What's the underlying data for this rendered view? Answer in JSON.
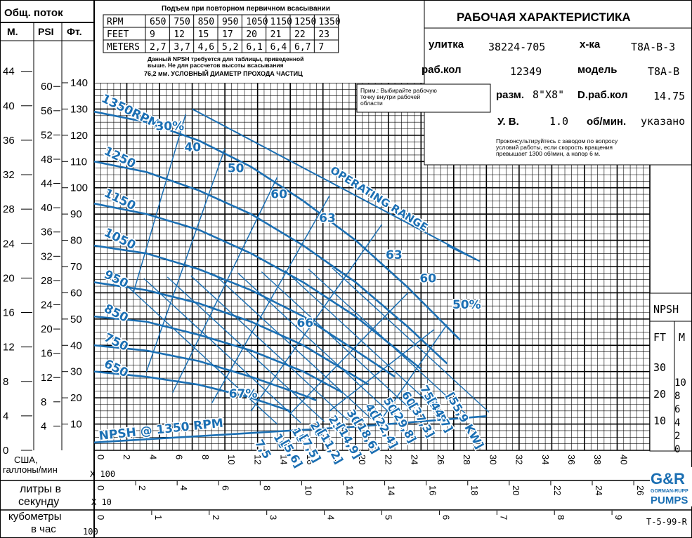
{
  "left_header": {
    "total_head": "Общ. поток",
    "m": "М.",
    "psi": "PSI",
    "ft": "Фт."
  },
  "npsh_table": {
    "title": "Подъем при повторном первичном всасывании",
    "rpm_label": "RPM",
    "feet_label": "FEET",
    "meters_label": "METERS",
    "rpm": [
      "650",
      "750",
      "850",
      "950",
      "1050",
      "1150",
      "1250",
      "1350"
    ],
    "feet": [
      "9",
      "12",
      "15",
      "17",
      "20",
      "21",
      "22",
      "23"
    ],
    "meters": [
      "2,7",
      "3,7",
      "4,6",
      "5,2",
      "6,1",
      "6,4",
      "6,7",
      "7"
    ],
    "note1": "Данный NPSH требуется для таблицы, приведенной",
    "note2": "выше. Не для рассчетов высоты всасывания",
    "note3": "76,2 мм. УСЛОВНЫЙ  ДИАМЕТР ПРОХОДА ЧАСТИЦ"
  },
  "spec": {
    "title": "РАБОЧАЯ ХАРАКТЕРИСТИКА",
    "volute_label": "улитка",
    "volute": "38224-705",
    "char_label": "х-ка",
    "char": "T8A-B-3",
    "impeller_label": "раб.кол",
    "impeller": "12349",
    "model_label": "модель",
    "model": "T8A-B",
    "size_label": "разм.",
    "size": "8\"X8\"",
    "dia_label": "D.раб.кол",
    "dia": "14.75",
    "sg_label": "У. В.",
    "sg": "1.0",
    "rpm_label": "об/мин.",
    "rpm": "указано",
    "consult": "Проконсультируйтесь с заводом по вопросу",
    "consult2": "условий работы, если скорость вращения",
    "consult3": "превышает 1300 об/мин, а напор 6 м.",
    "note": "Прим.: Выбирайте рабочую",
    "note2": "точку внутри рабочей",
    "note3": "области"
  },
  "axes": {
    "x_usgpm_label": "США,",
    "x_usgpm_label2": "галлоны/мин",
    "x_usgpm_mult": "X 100",
    "x_lps_label": "литры в",
    "x_lps_label2": "секунду",
    "x_lps_mult": "X 10",
    "x_m3h_label": "кубометры",
    "x_m3h_label2": "в час",
    "x_m3h_mult": "100",
    "x_usgpm_ticks": [
      "0",
      "2",
      "4",
      "6",
      "8",
      "10",
      "12",
      "14",
      "16",
      "18",
      "20",
      "22",
      "24",
      "26",
      "28",
      "30",
      "32",
      "34",
      "36",
      "38",
      "40"
    ],
    "x_lps_ticks": [
      "0",
      "2",
      "4",
      "6",
      "8",
      "10",
      "12",
      "14",
      "16",
      "18",
      "20",
      "22",
      "24",
      "26"
    ],
    "x_m3h_ticks": [
      "0",
      "1",
      "2",
      "3",
      "4",
      "5",
      "6",
      "7",
      "8",
      "9"
    ],
    "ft_ticks": [
      "10",
      "20",
      "30",
      "40",
      "50",
      "60",
      "70",
      "80",
      "90",
      "100",
      "110",
      "120",
      "130",
      "140"
    ],
    "psi_ticks": [
      "4",
      "8",
      "12",
      "16",
      "20",
      "24",
      "28",
      "32",
      "36",
      "40",
      "44",
      "48",
      "52",
      "56",
      "60"
    ],
    "m_ticks": [
      "0",
      "4",
      "8",
      "12",
      "16",
      "20",
      "24",
      "28",
      "32",
      "36",
      "40",
      "44"
    ]
  },
  "npsh_side": {
    "title": "NPSH",
    "ft": "FT",
    "m": "M",
    "ft_ticks": [
      "10",
      "20",
      "30"
    ],
    "m_ticks": [
      "0",
      "2",
      "4",
      "6",
      "8",
      "10"
    ]
  },
  "chart_data": {
    "type": "line",
    "x_unit": "US GPM x 100",
    "y_unit": "Total head ft",
    "xlim": [
      0,
      40
    ],
    "ylim": [
      0,
      140
    ],
    "curve_labels": [
      "1350RPM",
      "1250",
      "1150",
      "1050",
      "950",
      "850",
      "750",
      "650"
    ],
    "efficiency_labels": [
      "30%",
      "40",
      "50",
      "60",
      "63",
      "66",
      "67%",
      "63",
      "60",
      "50%"
    ],
    "hp_labels": [
      "7,5",
      "10",
      "15",
      "20",
      "25",
      "30",
      "40",
      "50",
      "60",
      "75BHP"
    ],
    "kw_labels": [
      "[5,6]",
      "[7,5]",
      "[11,2]",
      "[14,9]",
      "[18,6]",
      "[22,4]",
      "[29,8]",
      "[37,3]",
      "[44,7]",
      "[55,9 KW]"
    ],
    "operating_range_label": "OPERATING RANGE",
    "npsh_label": "NPSH @ 1350 RPM",
    "series": [
      {
        "name": "1350RPM",
        "x": [
          0,
          4,
          8,
          12,
          16,
          20,
          24,
          28
        ],
        "y": [
          129,
          125,
          118,
          108,
          95,
          80,
          62,
          42
        ]
      },
      {
        "name": "1250",
        "x": [
          0,
          4,
          8,
          12,
          16,
          20,
          24,
          27
        ],
        "y": [
          110,
          106,
          99,
          90,
          78,
          64,
          47,
          33
        ]
      },
      {
        "name": "1150",
        "x": [
          0,
          4,
          8,
          12,
          16,
          20,
          24,
          25
        ],
        "y": [
          94,
          90,
          84,
          75,
          64,
          51,
          35,
          31
        ]
      },
      {
        "name": "1050",
        "x": [
          0,
          4,
          8,
          12,
          16,
          20,
          23
        ],
        "y": [
          78,
          75,
          69,
          61,
          51,
          38,
          28
        ]
      },
      {
        "name": "950",
        "x": [
          0,
          4,
          8,
          12,
          16,
          20,
          21
        ],
        "y": [
          64,
          61,
          56,
          49,
          40,
          28,
          25
        ]
      },
      {
        "name": "850",
        "x": [
          0,
          4,
          8,
          12,
          16,
          19
        ],
        "y": [
          51,
          49,
          44,
          38,
          30,
          22
        ]
      },
      {
        "name": "750",
        "x": [
          0,
          4,
          8,
          12,
          16,
          17
        ],
        "y": [
          40,
          38,
          34,
          28,
          21,
          19
        ]
      },
      {
        "name": "650",
        "x": [
          0,
          4,
          8,
          12,
          15
        ],
        "y": [
          30,
          28,
          25,
          20,
          15
        ]
      },
      {
        "name": "NPSH @ 1350 RPM",
        "x": [
          0,
          10,
          20,
          30
        ],
        "y": [
          3,
          6,
          9,
          13
        ]
      }
    ]
  },
  "doc_code": "T-5-99-R",
  "logo": {
    "line1": "G&R",
    "line2": "GORMAN-RUPP",
    "line3": "PUMPS"
  }
}
